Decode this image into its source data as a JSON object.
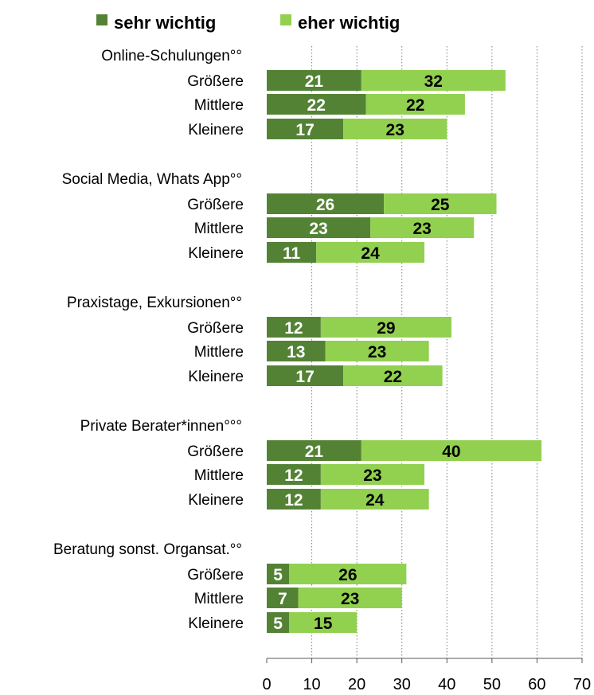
{
  "colors": {
    "sehr": "#548235",
    "eher": "#92D050",
    "grid": "#7f7f7f",
    "axis": "#595959"
  },
  "chart_data": {
    "type": "bar",
    "orientation": "horizontal",
    "stacked": true,
    "legend_position": "top",
    "grid": true,
    "xlim": [
      0,
      70
    ],
    "x_ticks": [
      "0",
      "10",
      "20",
      "30",
      "40",
      "50",
      "60",
      "70"
    ],
    "series": [
      {
        "name": "sehr wichtig",
        "color": "#548235"
      },
      {
        "name": "eher wichtig",
        "color": "#92D050"
      }
    ],
    "groups": [
      {
        "title": "Online-Schulungen°°",
        "rows": [
          {
            "label": "Größere",
            "values": [
              21,
              32
            ]
          },
          {
            "label": "Mittlere",
            "values": [
              22,
              22
            ]
          },
          {
            "label": "Kleinere",
            "values": [
              17,
              23
            ]
          }
        ]
      },
      {
        "title": "Social Media, Whats App°°",
        "rows": [
          {
            "label": "Größere",
            "values": [
              26,
              25
            ]
          },
          {
            "label": "Mittlere",
            "values": [
              23,
              23
            ]
          },
          {
            "label": "Kleinere",
            "values": [
              11,
              24
            ]
          }
        ]
      },
      {
        "title": "Praxistage, Exkursionen°°",
        "rows": [
          {
            "label": "Größere",
            "values": [
              12,
              29
            ]
          },
          {
            "label": "Mittlere",
            "values": [
              13,
              23
            ]
          },
          {
            "label": "Kleinere",
            "values": [
              17,
              22
            ]
          }
        ]
      },
      {
        "title": "Private Berater*innen°°°",
        "rows": [
          {
            "label": "Größere",
            "values": [
              21,
              40
            ]
          },
          {
            "label": "Mittlere",
            "values": [
              12,
              23
            ]
          },
          {
            "label": "Kleinere",
            "values": [
              12,
              24
            ]
          }
        ]
      },
      {
        "title": "Beratung sonst. Organsat.°°",
        "rows": [
          {
            "label": "Größere",
            "values": [
              5,
              26
            ]
          },
          {
            "label": "Mittlere",
            "values": [
              7,
              23
            ]
          },
          {
            "label": "Kleinere",
            "values": [
              5,
              15
            ]
          }
        ]
      }
    ]
  }
}
